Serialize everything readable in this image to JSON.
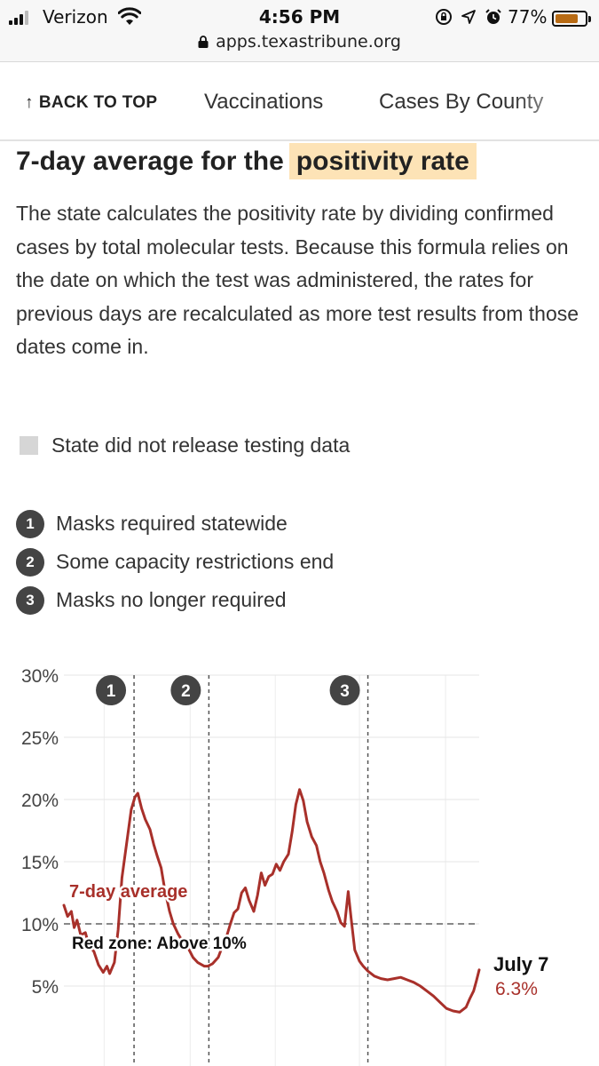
{
  "status_bar": {
    "carrier": "Verizon",
    "time": "4:56 PM",
    "battery_percent": "77%",
    "battery_level": 0.77,
    "battery_color": "#b86b14"
  },
  "browser": {
    "url": "apps.texastribune.org"
  },
  "nav": {
    "back_label": "BACK TO TOP",
    "back_arrow": "↑",
    "tabs": [
      "Vaccinations",
      "Cases By County"
    ]
  },
  "section": {
    "title_plain": "7-day average for the",
    "title_highlight": "positivity rate",
    "highlight_color": "#fde3b6",
    "description": "The state calculates the positivity rate by dividing confirmed cases by total molecular tests. Because this formula relies on the date on which the test was administered, the rates for previous days are recalculated as more test results from those dates come in."
  },
  "legend": {
    "no_data_label": "State did not release testing data",
    "markers": [
      {
        "num": "1",
        "label": "Masks required statewide"
      },
      {
        "num": "2",
        "label": "Some capacity restrictions end"
      },
      {
        "num": "3",
        "label": "Masks no longer required"
      }
    ]
  },
  "chart_data": {
    "type": "line",
    "ylim": [
      0,
      30
    ],
    "yticks": [
      5,
      10,
      15,
      20,
      25,
      30
    ],
    "ytick_labels": [
      "5%",
      "10%",
      "15%",
      "20%",
      "25%",
      "30%"
    ],
    "x_start": "2020-04-19",
    "x_end": "2021-07-07",
    "line_color": "#a8302a",
    "series_label": "7-day average",
    "threshold": {
      "value": 10,
      "label": "Red zone: Above 10%"
    },
    "events": [
      {
        "num": "1",
        "date": "2020-07-03"
      },
      {
        "num": "2",
        "date": "2020-09-21"
      },
      {
        "num": "3",
        "date": "2021-03-10"
      }
    ],
    "latest": {
      "label": "July 7",
      "value": "6.3%"
    },
    "series": [
      {
        "name": "7-day average",
        "points": [
          [
            "2020-04-19",
            11.5
          ],
          [
            "2020-04-23",
            10.6
          ],
          [
            "2020-04-27",
            11.0
          ],
          [
            "2020-04-30",
            9.7
          ],
          [
            "2020-05-03",
            10.3
          ],
          [
            "2020-05-07",
            9.1
          ],
          [
            "2020-05-12",
            9.3
          ],
          [
            "2020-05-16",
            8.2
          ],
          [
            "2020-05-21",
            7.8
          ],
          [
            "2020-05-26",
            6.7
          ],
          [
            "2020-05-31",
            6.1
          ],
          [
            "2020-06-04",
            6.6
          ],
          [
            "2020-06-07",
            6.0
          ],
          [
            "2020-06-12",
            6.9
          ],
          [
            "2020-06-16",
            9.5
          ],
          [
            "2020-06-20",
            13.7
          ],
          [
            "2020-06-26",
            17.0
          ],
          [
            "2020-06-30",
            19.2
          ],
          [
            "2020-07-04",
            20.2
          ],
          [
            "2020-07-07",
            20.5
          ],
          [
            "2020-07-11",
            19.3
          ],
          [
            "2020-07-15",
            18.4
          ],
          [
            "2020-07-20",
            17.6
          ],
          [
            "2020-07-24",
            16.4
          ],
          [
            "2020-07-28",
            15.4
          ],
          [
            "2020-08-01",
            14.5
          ],
          [
            "2020-08-05",
            12.7
          ],
          [
            "2020-08-10",
            11.0
          ],
          [
            "2020-08-14",
            10.0
          ],
          [
            "2020-08-19",
            9.2
          ],
          [
            "2020-08-23",
            8.7
          ],
          [
            "2020-08-27",
            8.4
          ],
          [
            "2020-08-31",
            7.9
          ],
          [
            "2020-09-04",
            7.3
          ],
          [
            "2020-09-09",
            6.9
          ],
          [
            "2020-09-16",
            6.6
          ],
          [
            "2020-09-20",
            6.6
          ],
          [
            "2020-09-25",
            6.8
          ],
          [
            "2020-10-01",
            7.3
          ],
          [
            "2020-10-05",
            8.1
          ],
          [
            "2020-10-10",
            9.0
          ],
          [
            "2020-10-14",
            10.0
          ],
          [
            "2020-10-18",
            10.9
          ],
          [
            "2020-10-22",
            11.2
          ],
          [
            "2020-10-26",
            12.5
          ],
          [
            "2020-10-30",
            12.9
          ],
          [
            "2020-11-03",
            11.9
          ],
          [
            "2020-11-08",
            11.0
          ],
          [
            "2020-11-12",
            12.3
          ],
          [
            "2020-11-16",
            14.1
          ],
          [
            "2020-11-20",
            13.1
          ],
          [
            "2020-11-24",
            13.8
          ],
          [
            "2020-11-28",
            14.0
          ],
          [
            "2020-12-02",
            14.8
          ],
          [
            "2020-12-06",
            14.3
          ],
          [
            "2020-12-10",
            15.0
          ],
          [
            "2020-12-15",
            15.6
          ],
          [
            "2020-12-19",
            17.4
          ],
          [
            "2020-12-23",
            19.6
          ],
          [
            "2020-12-27",
            20.8
          ],
          [
            "2020-12-31",
            19.9
          ],
          [
            "2021-01-04",
            18.2
          ],
          [
            "2021-01-09",
            17.0
          ],
          [
            "2021-01-14",
            16.3
          ],
          [
            "2021-01-18",
            15.0
          ],
          [
            "2021-01-22",
            14.1
          ],
          [
            "2021-01-27",
            12.7
          ],
          [
            "2021-01-31",
            11.8
          ],
          [
            "2021-02-05",
            11.0
          ],
          [
            "2021-02-09",
            10.1
          ],
          [
            "2021-02-13",
            9.8
          ],
          [
            "2021-02-17",
            12.6
          ],
          [
            "2021-02-20",
            10.5
          ],
          [
            "2021-02-24",
            7.9
          ],
          [
            "2021-03-01",
            7.0
          ],
          [
            "2021-03-05",
            6.6
          ],
          [
            "2021-03-10",
            6.2
          ],
          [
            "2021-03-17",
            5.8
          ],
          [
            "2021-03-24",
            5.6
          ],
          [
            "2021-03-31",
            5.5
          ],
          [
            "2021-04-07",
            5.6
          ],
          [
            "2021-04-14",
            5.7
          ],
          [
            "2021-04-21",
            5.5
          ],
          [
            "2021-04-28",
            5.3
          ],
          [
            "2021-05-05",
            5.0
          ],
          [
            "2021-05-12",
            4.6
          ],
          [
            "2021-05-19",
            4.2
          ],
          [
            "2021-05-26",
            3.7
          ],
          [
            "2021-06-02",
            3.2
          ],
          [
            "2021-06-09",
            3.0
          ],
          [
            "2021-06-16",
            2.9
          ],
          [
            "2021-06-23",
            3.3
          ],
          [
            "2021-06-27",
            4.0
          ],
          [
            "2021-07-01",
            4.6
          ],
          [
            "2021-07-04",
            5.4
          ],
          [
            "2021-07-07",
            6.3
          ]
        ]
      }
    ]
  }
}
